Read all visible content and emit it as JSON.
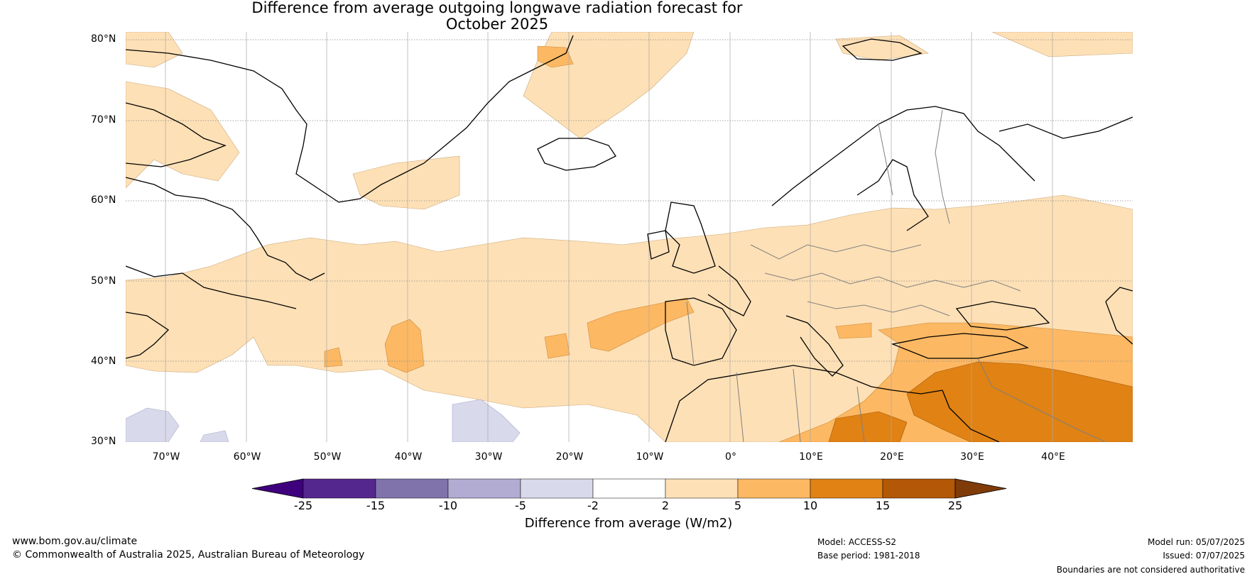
{
  "title": {
    "line1": "Difference from average outgoing longwave radiation forecast for",
    "line2": "October 2025"
  },
  "map": {
    "region": "Europe and North Atlantic",
    "lat_labels": [
      "80°N",
      "70°N",
      "60°N",
      "50°N",
      "40°N",
      "30°N"
    ],
    "lon_labels": [
      "70°W",
      "60°W",
      "50°W",
      "40°W",
      "30°W",
      "20°W",
      "10°W",
      "0°",
      "10°E",
      "20°E",
      "30°E",
      "40°E"
    ],
    "colors": {
      "land_outline": "#000000",
      "border_line": "#808080",
      "grid_line": "#9a9a9a"
    }
  },
  "colorbar": {
    "ticks": [
      "-25",
      "-15",
      "-10",
      "-5",
      "-2",
      "2",
      "5",
      "10",
      "15",
      "25"
    ],
    "colors": [
      "#3f007d",
      "#54278f",
      "#8073ac",
      "#b2abd2",
      "#d8daeb",
      "#ffffff",
      "#fee0b6",
      "#fdb863",
      "#e08214",
      "#b35806",
      "#7f3b08"
    ],
    "label": "Difference from average (W/m2)"
  },
  "footer": {
    "website": "www.bom.gov.au/climate",
    "copyright": "© Commonwealth of Australia 2025, Australian Bureau of Meteorology",
    "model": "Model: ACCESS-S2",
    "base_period": "Base period: 1981-2018",
    "model_run": "Model run: 05/07/2025",
    "issued": "Issued: 07/07/2025",
    "disclaimer": "Boundaries are not considered authoritative"
  }
}
